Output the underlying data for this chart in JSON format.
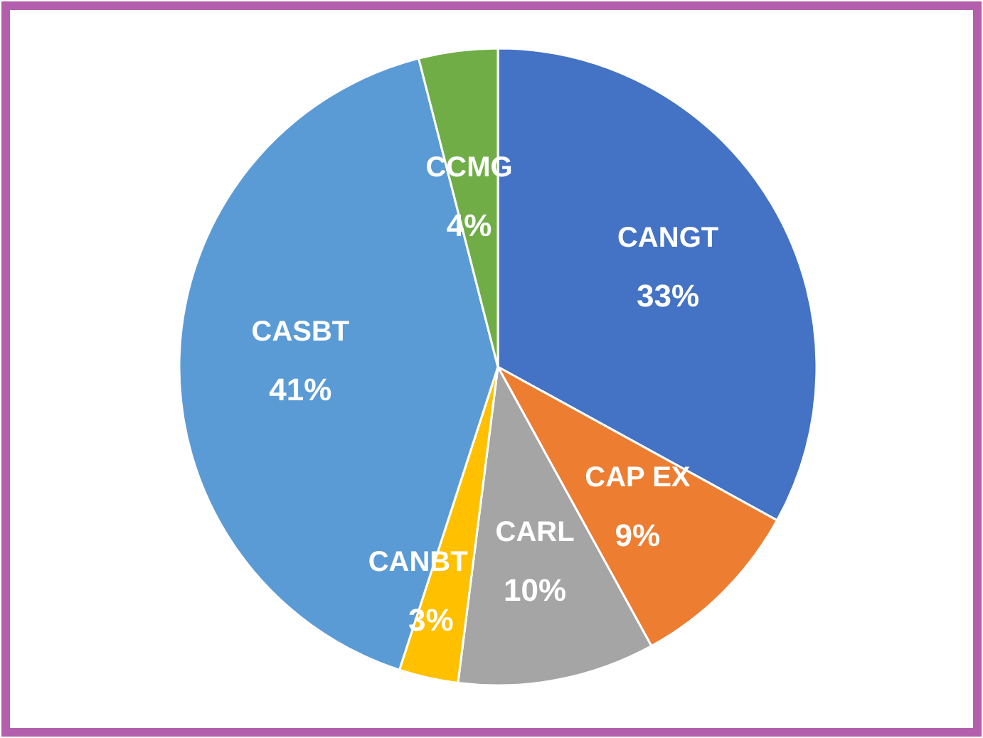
{
  "chart_data": {
    "type": "pie",
    "categories": [
      "CANGT",
      "CAP EX",
      "CARL",
      "CANBT",
      "CASBT",
      "CCMG"
    ],
    "values": [
      33,
      9,
      10,
      3,
      41,
      4
    ],
    "colors": [
      "#4472c4",
      "#ed7d31",
      "#a5a5a5",
      "#ffc000",
      "#5b9bd5",
      "#70ad47"
    ],
    "value_labels": [
      "33%",
      "9%",
      "10%",
      "3%",
      "41%",
      "4%"
    ]
  }
}
